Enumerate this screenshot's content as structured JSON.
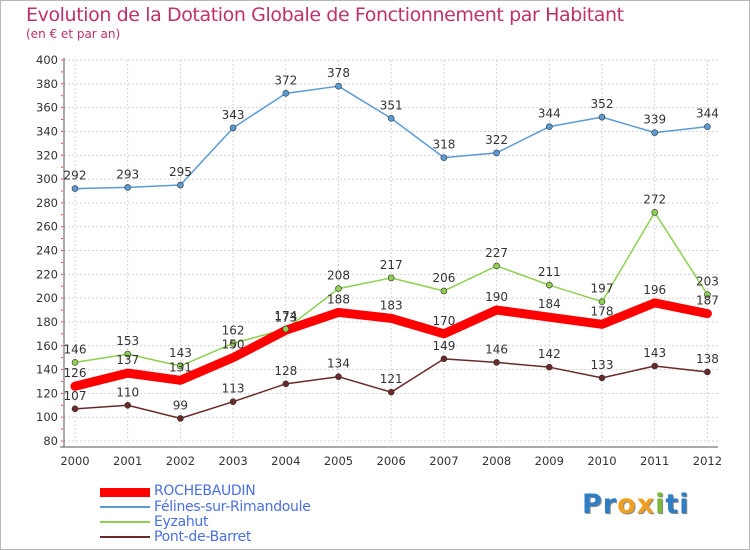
{
  "title": "Evolution de la Dotation Globale de Fonctionnement par Habitant",
  "subtitle": "(en € et par an)",
  "logo": {
    "text": [
      "P",
      "r",
      "o",
      "x",
      "i",
      "t",
      "i"
    ],
    "colors": [
      "#2f7ec4",
      "#2f7ec4",
      "#f0a020",
      "#f0a020",
      "#7db83a",
      "#2f7ec4",
      "#2f7ec4"
    ]
  },
  "chart_data": {
    "type": "line",
    "x": [
      "2000",
      "2001",
      "2002",
      "2003",
      "2004",
      "2005",
      "2006",
      "2007",
      "2008",
      "2009",
      "2010",
      "2011",
      "2012"
    ],
    "ylim": [
      80,
      400
    ],
    "yticks": [
      "80",
      "100",
      "120",
      "140",
      "160",
      "180",
      "200",
      "220",
      "240",
      "260",
      "280",
      "300",
      "320",
      "340",
      "360",
      "380",
      "400"
    ],
    "grid": true,
    "legend_position": "bottom-left",
    "series": [
      {
        "name": "Félines-sur-Rimandoule",
        "color": "#5b9bd5",
        "values": [
          292,
          293,
          295,
          343,
          372,
          378,
          351,
          318,
          322,
          344,
          352,
          339,
          344
        ],
        "labels": [
          "292",
          "293",
          "295",
          "343",
          "372",
          "378",
          "351",
          "318",
          "322",
          "344",
          "352",
          "339",
          "344"
        ]
      },
      {
        "name": "Eyzahut",
        "color": "#8fd050",
        "values": [
          146,
          153,
          143,
          162,
          174,
          208,
          217,
          206,
          227,
          211,
          197,
          272,
          203
        ],
        "labels": [
          "146",
          "153",
          "143",
          "162",
          "174",
          "208",
          "217",
          "206",
          "227",
          "211",
          "197",
          "272",
          "203"
        ]
      },
      {
        "name": "Pont-de-Barret",
        "color": "#6b2a2a",
        "values": [
          107,
          110,
          99,
          113,
          128,
          134,
          121,
          149,
          146,
          142,
          133,
          143,
          138
        ],
        "labels": [
          "107",
          "110",
          "99",
          "113",
          "128",
          "134",
          "121",
          "149",
          "146",
          "142",
          "133",
          "143",
          "138"
        ]
      },
      {
        "name": "ROCHEBAUDIN",
        "color": "#ff0000",
        "values": [
          126,
          137,
          131,
          150,
          173,
          188,
          183,
          170,
          190,
          184,
          178,
          196,
          187
        ],
        "labels": [
          "126",
          "137",
          "131",
          "150",
          "173",
          "188",
          "183",
          "170",
          "190",
          "184",
          "178",
          "196",
          "187"
        ]
      }
    ]
  },
  "legend": [
    {
      "name": "ROCHEBAUDIN",
      "color": "#ff0000",
      "text_color": "#4a6fe0"
    },
    {
      "name": "Félines-sur-Rimandoule",
      "color": "#5b9bd5",
      "text_color": "#4a6fe0"
    },
    {
      "name": "Eyzahut",
      "color": "#8fd050",
      "text_color": "#4a6fe0"
    },
    {
      "name": "Pont-de-Barret",
      "color": "#6b2a2a",
      "text_color": "#4a6fe0"
    }
  ]
}
